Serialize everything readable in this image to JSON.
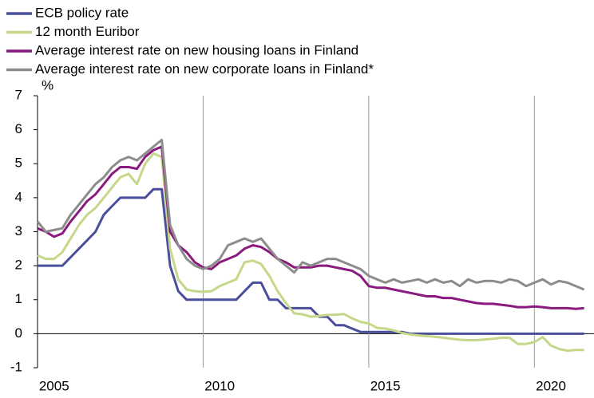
{
  "chart_data": {
    "type": "line",
    "y_label": "%",
    "x": [
      2005,
      2005.25,
      2005.5,
      2005.75,
      2006,
      2006.25,
      2006.5,
      2006.75,
      2007,
      2007.25,
      2007.5,
      2007.75,
      2008,
      2008.25,
      2008.5,
      2008.75,
      2009,
      2009.25,
      2009.5,
      2009.75,
      2010,
      2010.25,
      2010.5,
      2010.75,
      2011,
      2011.25,
      2011.5,
      2011.75,
      2012,
      2012.25,
      2012.5,
      2012.75,
      2013,
      2013.25,
      2013.5,
      2013.75,
      2014,
      2014.25,
      2014.5,
      2014.75,
      2015,
      2015.25,
      2015.5,
      2015.75,
      2016,
      2016.25,
      2016.5,
      2016.75,
      2017,
      2017.25,
      2017.5,
      2017.75,
      2018,
      2018.25,
      2018.5,
      2018.75,
      2019,
      2019.25,
      2019.5,
      2019.75,
      2020,
      2020.25,
      2020.5,
      2020.75,
      2021,
      2021.25,
      2021.5
    ],
    "series": [
      {
        "name": "ECB policy rate",
        "color": "#4a4f9c",
        "values": [
          2,
          2,
          2,
          2,
          2.25,
          2.5,
          2.75,
          3,
          3.5,
          3.75,
          4,
          4,
          4,
          4,
          4.25,
          4.25,
          2,
          1.25,
          1,
          1,
          1,
          1,
          1,
          1,
          1,
          1.25,
          1.5,
          1.5,
          1,
          1,
          0.75,
          0.75,
          0.75,
          0.75,
          0.5,
          0.5,
          0.25,
          0.25,
          0.15,
          0.05,
          0.05,
          0.05,
          0.05,
          0.05,
          0.05,
          0,
          0,
          0,
          0,
          0,
          0,
          0,
          0,
          0,
          0,
          0,
          0,
          0,
          0,
          0,
          0,
          0,
          0,
          0,
          0,
          0,
          0
        ]
      },
      {
        "name": "12 month Euribor",
        "color": "#c5d88a",
        "values": [
          2.3,
          2.2,
          2.2,
          2.4,
          2.8,
          3.2,
          3.5,
          3.7,
          4,
          4.3,
          4.6,
          4.7,
          4.4,
          5,
          5.3,
          5.2,
          2.5,
          1.6,
          1.3,
          1.25,
          1.23,
          1.25,
          1.4,
          1.5,
          1.6,
          2.1,
          2.15,
          2.05,
          1.7,
          1.25,
          0.9,
          0.6,
          0.57,
          0.5,
          0.52,
          0.55,
          0.56,
          0.58,
          0.45,
          0.35,
          0.3,
          0.17,
          0.15,
          0.1,
          0.02,
          -0.02,
          -0.05,
          -0.07,
          -0.09,
          -0.12,
          -0.15,
          -0.18,
          -0.19,
          -0.19,
          -0.17,
          -0.15,
          -0.12,
          -0.12,
          -0.3,
          -0.3,
          -0.25,
          -0.1,
          -0.35,
          -0.45,
          -0.5,
          -0.48,
          -0.48
        ]
      },
      {
        "name": "Average interest rate on new housing loans in Finland",
        "color": "#8b1a7e",
        "values": [
          3.1,
          3,
          2.85,
          2.95,
          3.3,
          3.6,
          3.9,
          4.1,
          4.4,
          4.7,
          4.9,
          4.9,
          4.85,
          5.2,
          5.4,
          5.5,
          3,
          2.6,
          2.4,
          2.1,
          1.95,
          1.9,
          2.1,
          2.2,
          2.3,
          2.5,
          2.6,
          2.55,
          2.4,
          2.2,
          2.1,
          1.95,
          1.95,
          1.95,
          2,
          2,
          1.95,
          1.9,
          1.85,
          1.7,
          1.4,
          1.35,
          1.35,
          1.3,
          1.25,
          1.2,
          1.15,
          1.1,
          1.1,
          1.05,
          1.05,
          1,
          0.95,
          0.9,
          0.88,
          0.88,
          0.85,
          0.82,
          0.78,
          0.78,
          0.8,
          0.78,
          0.75,
          0.75,
          0.75,
          0.73,
          0.75
        ]
      },
      {
        "name": "Average interest rate on new corporate loans in Finland*",
        "color": "#8c8c8c",
        "values": [
          3.3,
          3,
          3.05,
          3.1,
          3.5,
          3.8,
          4.1,
          4.4,
          4.6,
          4.9,
          5.1,
          5.2,
          5.1,
          5.3,
          5.5,
          5.7,
          3.2,
          2.6,
          2.2,
          2,
          1.9,
          2,
          2.2,
          2.6,
          2.7,
          2.8,
          2.7,
          2.8,
          2.5,
          2.2,
          2,
          1.8,
          2.1,
          2,
          2.1,
          2.2,
          2.2,
          2.1,
          2,
          1.9,
          1.7,
          1.6,
          1.5,
          1.6,
          1.5,
          1.55,
          1.6,
          1.5,
          1.6,
          1.5,
          1.55,
          1.4,
          1.6,
          1.5,
          1.55,
          1.55,
          1.5,
          1.6,
          1.55,
          1.4,
          1.5,
          1.6,
          1.45,
          1.55,
          1.5,
          1.4,
          1.3
        ]
      }
    ],
    "xlim": [
      2005,
      2021.8
    ],
    "xticks": [
      2005,
      2010,
      2015,
      2020
    ],
    "ylim": [
      -1,
      7
    ],
    "yticks": [
      -1,
      0,
      1,
      2,
      3,
      4,
      5,
      6,
      7
    ],
    "grid": "x"
  }
}
